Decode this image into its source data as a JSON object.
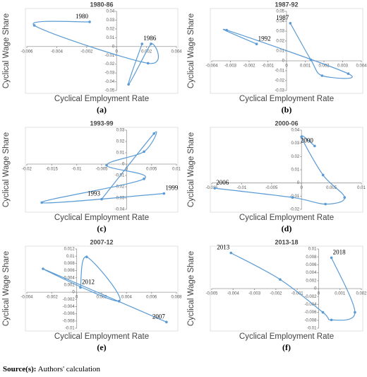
{
  "chart_data": [
    {
      "type": "line",
      "title": "1980-86",
      "x_label": "Cyclical Employment Rate",
      "y_label": "Cyclical Wage Share",
      "panel": "(a)",
      "xlim": [
        -0.006,
        0.004
      ],
      "xticks": [
        -0.006,
        -0.004,
        -0.002,
        0,
        0.002,
        0.004
      ],
      "ylim": [
        -0.05,
        0.04
      ],
      "yticks": [
        -0.05,
        -0.04,
        -0.03,
        -0.02,
        -0.01,
        0,
        0.01,
        0.02,
        0.03,
        0.04
      ],
      "series": [
        {
          "color": "#5b9bd5",
          "x": [
            -0.0018,
            -0.0055,
            0.0021,
            0.0023,
            0.0008,
            0.0017
          ],
          "values": [
            0.028,
            0.024,
            -0.019,
            0.003,
            -0.043,
            0.003
          ],
          "labels": [
            "1980",
            null,
            null,
            null,
            null,
            "1986"
          ]
        }
      ]
    },
    {
      "type": "line",
      "title": "1987-92",
      "x_label": "Cyclical Employment Rate",
      "y_label": "Cyclical Wage Share",
      "panel": "(b)",
      "xlim": [
        -0.004,
        0.004
      ],
      "xticks": [
        -0.004,
        -0.003,
        -0.002,
        -0.001,
        0,
        0.001,
        0.002,
        0.003,
        0.004
      ],
      "ylim": [
        -0.03,
        0.05
      ],
      "yticks": [
        -0.03,
        -0.02,
        -0.01,
        0,
        0.01,
        0.02,
        0.03,
        0.04,
        0.05
      ],
      "series": [
        {
          "color": "#5b9bd5",
          "x": [
            0.0002,
            0.0013,
            0.0019,
            0.0033,
            -0.0032,
            -0.0016
          ],
          "values": [
            0.038,
            0.001,
            -0.015,
            -0.013,
            0.031,
            0.017
          ],
          "labels": [
            "1987",
            null,
            null,
            null,
            null,
            "1992"
          ]
        }
      ]
    },
    {
      "type": "line",
      "title": "1993-99",
      "x_label": "Cyclical Employment Rate",
      "y_label": "Cyclical Wage Share",
      "panel": "(c)",
      "xlim": [
        -0.02,
        0.01
      ],
      "xticks": [
        -0.02,
        -0.015,
        -0.01,
        -0.005,
        0,
        0.005,
        0.01
      ],
      "ylim": [
        -0.04,
        0.03
      ],
      "yticks": [
        -0.04,
        -0.03,
        -0.02,
        -0.01,
        0,
        0.01,
        0.02,
        0.03
      ],
      "series": [
        {
          "color": "#5b9bd5",
          "x": [
            -0.005,
            0.0055,
            0.0035,
            -0.004,
            0.0035,
            -0.017,
            0.0075
          ],
          "values": [
            -0.031,
            0.027,
            0.011,
            -0.001,
            -0.013,
            -0.034,
            -0.026
          ],
          "labels": [
            "1993",
            null,
            null,
            null,
            null,
            null,
            "1999"
          ]
        }
      ]
    },
    {
      "type": "line",
      "title": "2000-06",
      "x_label": "Cyclical Employment Rate",
      "y_label": "Cyclical Wage Share",
      "panel": "(d)",
      "xlim": [
        -0.015,
        0.01
      ],
      "xticks": [
        -0.015,
        -0.01,
        -0.005,
        0,
        0.005,
        0.01
      ],
      "ylim": [
        -0.02,
        0.04
      ],
      "yticks": [
        -0.02,
        -0.01,
        0,
        0.01,
        0.02,
        0.03,
        0.04
      ],
      "series": [
        {
          "color": "#5b9bd5",
          "x": [
            0.0022,
            0,
            0.0036,
            0.0072,
            0.004,
            -0.0015,
            -0.0145
          ],
          "values": [
            0.028,
            0.035,
            0.006,
            -0.011,
            -0.016,
            -0.011,
            -0.004
          ],
          "labels": [
            "2000",
            null,
            null,
            null,
            null,
            null,
            "2006"
          ]
        }
      ]
    },
    {
      "type": "line",
      "title": "2007-12",
      "x_label": "Cyclical Employment Rate",
      "y_label": "Cyclical Wage Share",
      "panel": "(e)",
      "xlim": [
        -0.004,
        0.008
      ],
      "xticks": [
        -0.004,
        -0.002,
        0,
        0.002,
        0.004,
        0.006,
        0.008
      ],
      "ylim": [
        -0.01,
        0.012
      ],
      "yticks": [
        -0.01,
        -0.008,
        -0.006,
        -0.004,
        -0.002,
        0,
        0.002,
        0.004,
        0.006,
        0.008,
        0.01,
        0.012
      ],
      "series": [
        {
          "color": "#5b9bd5",
          "x": [
            0.0072,
            -0.0027,
            0.0034,
            0.0008,
            0.0003
          ],
          "values": [
            -0.0083,
            0.0065,
            -0.0025,
            0.0098,
            0.0013
          ],
          "labels": [
            "2007",
            null,
            null,
            null,
            "2012"
          ]
        }
      ]
    },
    {
      "type": "line",
      "title": "2013-18",
      "x_label": "Cyclical Employment Rate",
      "y_label": "Cyclical Wage Share",
      "panel": "(f)",
      "xlim": [
        -0.005,
        0.002
      ],
      "xticks": [
        -0.005,
        -0.004,
        -0.003,
        -0.002,
        -0.001,
        0,
        0.001,
        0.002
      ],
      "ylim": [
        -0.01,
        0.01
      ],
      "yticks": [
        -0.01,
        -0.008,
        -0.006,
        -0.004,
        -0.002,
        0,
        0.002,
        0.004,
        0.006,
        0.008,
        0.01
      ],
      "series": [
        {
          "color": "#5b9bd5",
          "x": [
            -0.0041,
            -0.0018,
            0.0002,
            0.0006,
            0.0017,
            0.0006
          ],
          "values": [
            0.009,
            0.0023,
            -0.006,
            -0.0079,
            -0.006,
            0.0078
          ],
          "labels": [
            "2013",
            null,
            null,
            null,
            null,
            "2018"
          ]
        }
      ]
    }
  ],
  "source": {
    "label": "Source(s):",
    "text": "Authors' calculation"
  }
}
